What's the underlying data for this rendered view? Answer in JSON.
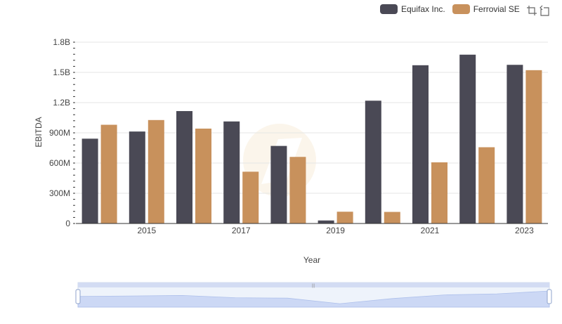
{
  "chart_data": {
    "type": "bar",
    "xlabel": "Year",
    "ylabel": "EBITDA",
    "categories": [
      "2014",
      "2015",
      "2016",
      "2017",
      "2018",
      "2019",
      "2020",
      "2021",
      "2022",
      "2023"
    ],
    "x_tick_labels": [
      "2015",
      "2017",
      "2019",
      "2021",
      "2023"
    ],
    "y_tick_labels": [
      "0",
      "300M",
      "600M",
      "900M",
      "1.2B",
      "1.5B",
      "1.8B"
    ],
    "ylim": [
      0,
      1800000000
    ],
    "legend_position": "top-right",
    "grid": true,
    "series": [
      {
        "name": "Equifax Inc.",
        "color": "#4a4955",
        "values": [
          842000000,
          913000000,
          1116000000,
          1013000000,
          770000000,
          30000000,
          1219000000,
          1571000000,
          1676000000,
          1575000000
        ]
      },
      {
        "name": "Ferrovial SE",
        "color": "#c8915c",
        "values": [
          980000000,
          1027000000,
          942000000,
          514000000,
          661000000,
          117000000,
          115000000,
          607000000,
          757000000,
          1522000000
        ]
      }
    ]
  },
  "toolbox": {
    "zoom_icon": "zoom-icon",
    "restore_icon": "restore-icon"
  },
  "datazoom": {
    "range_start_percent": 0,
    "range_end_percent": 100
  }
}
